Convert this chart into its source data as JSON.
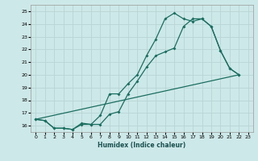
{
  "xlabel": "Humidex (Indice chaleur)",
  "bg_color": "#cde8e8",
  "grid_color": "#b8d4d4",
  "line_color": "#1a6e60",
  "xlim": [
    -0.5,
    23.5
  ],
  "ylim": [
    15.5,
    25.5
  ],
  "xticks": [
    0,
    1,
    2,
    3,
    4,
    5,
    6,
    7,
    8,
    9,
    10,
    11,
    12,
    13,
    14,
    15,
    16,
    17,
    18,
    19,
    20,
    21,
    22,
    23
  ],
  "yticks": [
    16,
    17,
    18,
    19,
    20,
    21,
    22,
    23,
    24,
    25
  ],
  "curve1_y": [
    16.5,
    16.4,
    15.8,
    15.8,
    15.7,
    16.2,
    16.1,
    16.8,
    18.5,
    18.5,
    19.3,
    20.0,
    21.5,
    22.8,
    24.4,
    24.85,
    24.4,
    24.2,
    24.4,
    23.8,
    21.9,
    20.5,
    20.0,
    null
  ],
  "curve2_y": [
    16.5,
    16.4,
    15.8,
    15.8,
    15.7,
    16.1,
    16.1,
    16.1,
    16.9,
    17.1,
    18.5,
    19.5,
    20.6,
    21.5,
    21.8,
    22.1,
    23.8,
    24.4,
    24.4,
    23.8,
    21.9,
    20.5,
    20.0,
    null
  ],
  "curve3_x": [
    0,
    22
  ],
  "curve3_y": [
    16.5,
    20.0
  ]
}
